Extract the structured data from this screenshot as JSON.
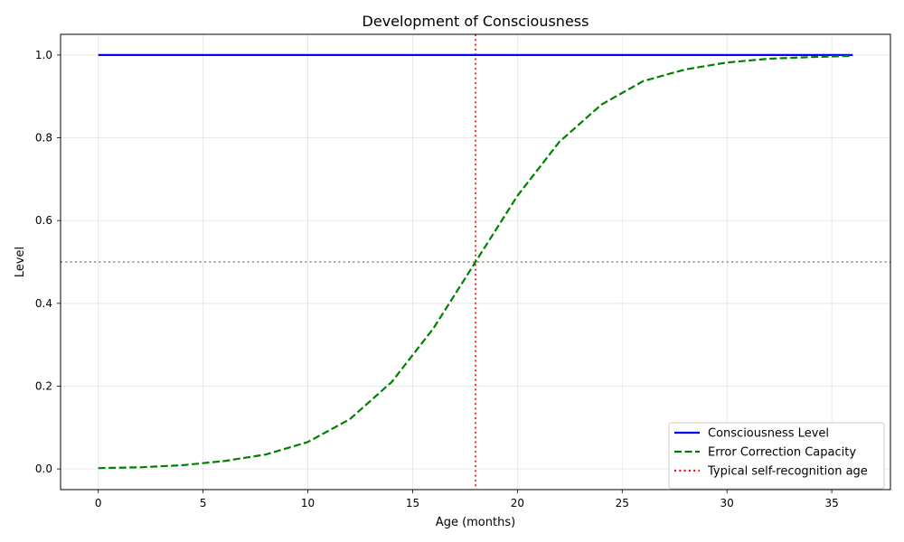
{
  "chart_data": {
    "type": "line",
    "title": "Development of Consciousness",
    "xlabel": "Age (months)",
    "ylabel": "Level",
    "xlim": [
      -1.8,
      37.8
    ],
    "ylim": [
      -0.05,
      1.05
    ],
    "xticks": [
      0,
      5,
      10,
      15,
      20,
      25,
      30,
      35
    ],
    "xtick_labels": [
      "0",
      "5",
      "10",
      "15",
      "20",
      "25",
      "30",
      "35"
    ],
    "yticks": [
      0.0,
      0.2,
      0.4,
      0.6,
      0.8,
      1.0
    ],
    "ytick_labels": [
      "0.0",
      "0.2",
      "0.4",
      "0.6",
      "0.8",
      "1.0"
    ],
    "grid": true,
    "legend_position": "lower-right",
    "series": [
      {
        "name": "Consciousness Level",
        "color": "#0000ff",
        "style": "solid",
        "x": [
          0,
          36
        ],
        "y": [
          1.0,
          1.0
        ]
      },
      {
        "name": "Error Correction Capacity",
        "color": "#008000",
        "style": "dashed",
        "x": [
          0,
          2,
          4,
          6,
          8,
          10,
          12,
          14,
          16,
          18,
          20,
          22,
          24,
          26,
          28,
          30,
          32,
          34,
          36
        ],
        "y": [
          0.002,
          0.004,
          0.009,
          0.019,
          0.035,
          0.065,
          0.12,
          0.21,
          0.34,
          0.5,
          0.66,
          0.79,
          0.88,
          0.937,
          0.965,
          0.982,
          0.991,
          0.995,
          0.998
        ]
      }
    ],
    "reference_lines": [
      {
        "name": "Typical self-recognition age",
        "orientation": "vertical",
        "value": 18,
        "color": "#ff0000",
        "style": "dotted",
        "in_legend": true
      },
      {
        "orientation": "horizontal",
        "value": 0.5,
        "color": "#808080",
        "style": "dotted",
        "in_legend": false
      }
    ]
  }
}
